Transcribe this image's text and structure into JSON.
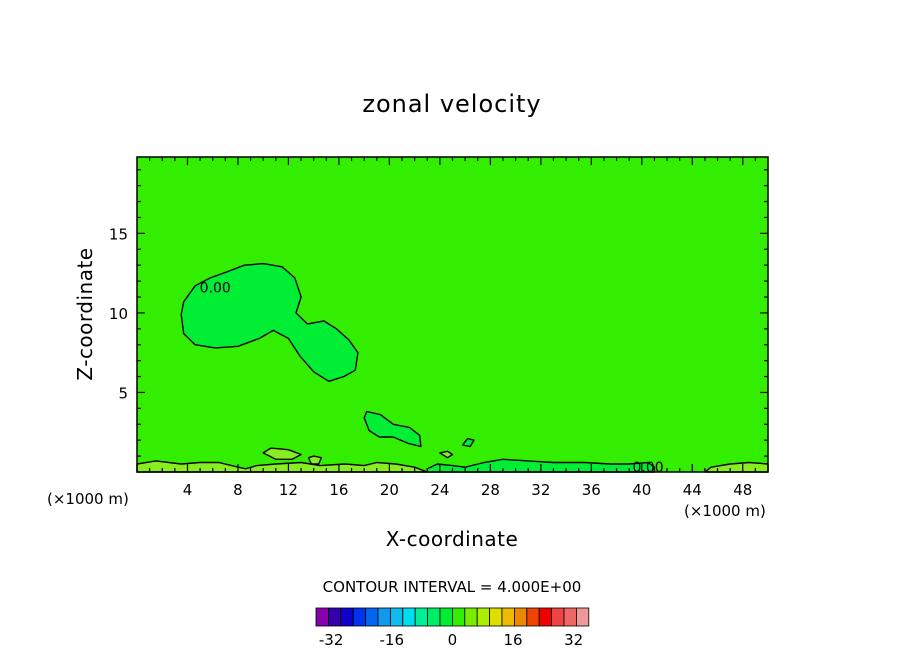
{
  "chart_data": {
    "type": "contour",
    "title": "zonal velocity",
    "xlabel": "X-coordinate",
    "ylabel": "Z-coordinate",
    "x_unit_label": "(×1000 m)",
    "xlim": [
      0,
      50
    ],
    "ylim": [
      0,
      19.8
    ],
    "x_ticks": [
      4,
      8,
      12,
      16,
      20,
      24,
      28,
      32,
      36,
      40,
      44,
      48
    ],
    "y_ticks": [
      5,
      10,
      15
    ],
    "background_level": 0,
    "colors": {
      "background_fill": "#33ee00",
      "positive_fill": "#88ee22",
      "negative_fill": "#00ee33"
    },
    "contour_labels": [
      {
        "text": "0.00",
        "x": 6.2,
        "z": 11.6
      },
      {
        "text": "0.00",
        "x": 40.5,
        "z": 0.3
      }
    ],
    "regions": [
      {
        "sign": "negative",
        "note": "upper-left region, about x 3.5-17.5, z 5.7-13.1"
      },
      {
        "sign": "negative",
        "note": "x 18-22.5, z 1.5-3.8"
      },
      {
        "sign": "negative",
        "note": "near surface band, x 23-41"
      },
      {
        "sign": "positive",
        "note": "near surface patches along z 0-1"
      }
    ],
    "contour_interval_text": "CONTOUR INTERVAL = 4.000E+00",
    "colorbar": {
      "colors": [
        "#8800aa",
        "#3300aa",
        "#1100cc",
        "#0033ee",
        "#0066ee",
        "#1199ee",
        "#11bbee",
        "#00ddee",
        "#00ee99",
        "#00ee66",
        "#00ee33",
        "#33ee00",
        "#77ee00",
        "#aaee00",
        "#dddd00",
        "#eebb00",
        "#ee8800",
        "#ee4400",
        "#ee0000",
        "#ee4444",
        "#ee6666",
        "#ee9999"
      ],
      "tick_labels": [
        "-32",
        "-16",
        "0",
        "16",
        "32"
      ],
      "tick_values": [
        -32,
        -16,
        0,
        16,
        32
      ]
    }
  }
}
